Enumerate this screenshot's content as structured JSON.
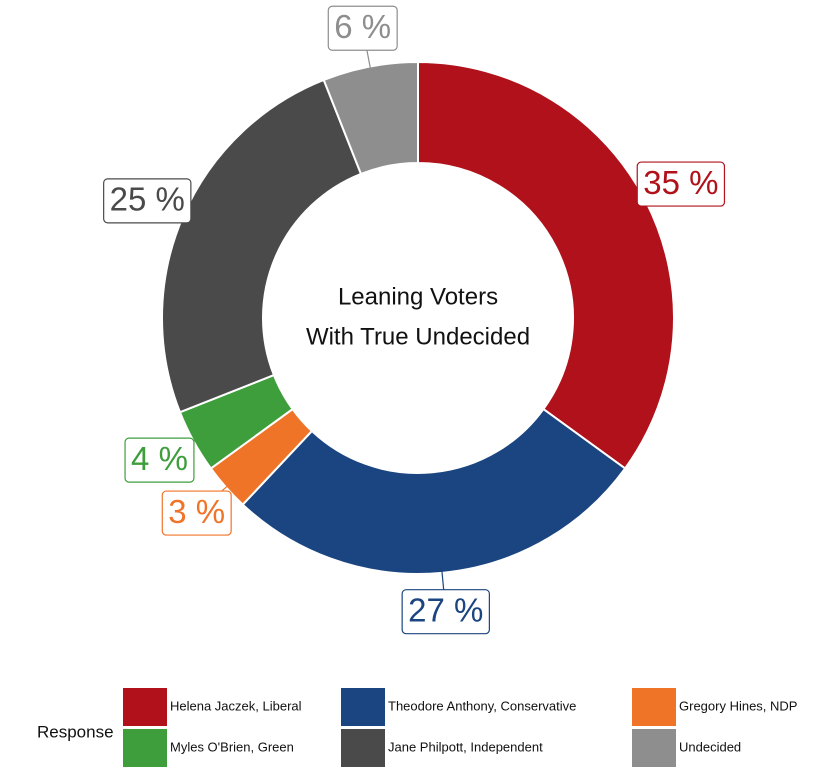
{
  "chart_data": {
    "type": "donut",
    "center_label": [
      "Leaning Voters",
      "With True Undecided"
    ],
    "categories": [
      "Helena Jaczek, Liberal",
      "Theodore Anthony, Conservative",
      "Gregory Hines, NDP",
      "Myles O'Brien, Green",
      "Jane Philpott, Independent",
      "Undecided"
    ],
    "values": [
      35,
      27,
      3,
      4,
      25,
      6
    ],
    "value_labels": [
      "35 %",
      "27 %",
      "3 %",
      "4 %",
      "25 %",
      "6 %"
    ],
    "colors": [
      "#b0111a",
      "#1b4580",
      "#f07428",
      "#3f9e3c",
      "#4a4a4a",
      "#8e8e8e"
    ],
    "legend_title": "Response",
    "legend": "bottom"
  }
}
